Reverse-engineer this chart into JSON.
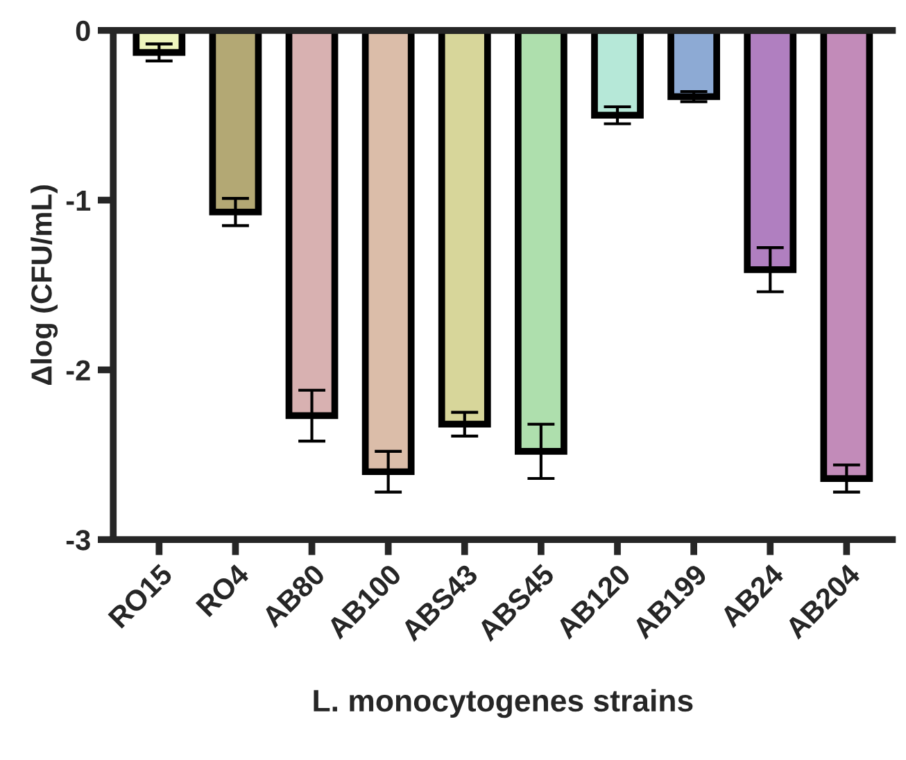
{
  "chart_data": {
    "type": "bar",
    "xlabel": "L. monocytogenes strains",
    "ylabel": "Δlog (CFU/mL)",
    "categories": [
      "RO15",
      "RO4",
      "AB80",
      "AB100",
      "ABS43",
      "ABS45",
      "AB120",
      "AB199",
      "AB24",
      "AB204"
    ],
    "values": [
      -0.13,
      -1.07,
      -2.27,
      -2.6,
      -2.32,
      -2.48,
      -0.5,
      -0.39,
      -1.41,
      -2.64
    ],
    "errors": [
      0.05,
      0.08,
      0.15,
      0.12,
      0.07,
      0.16,
      0.05,
      0.03,
      0.13,
      0.08
    ],
    "colors": [
      "#eef5bd",
      "#b3a874",
      "#d8b1b1",
      "#dbbda9",
      "#d7d69a",
      "#aedfad",
      "#b6e8d8",
      "#8daad4",
      "#b07fc0",
      "#c28bb9"
    ],
    "ylim": [
      -3,
      0
    ],
    "yticks": [
      -3,
      -2,
      -1,
      0
    ],
    "grid": false,
    "legend": false
  }
}
